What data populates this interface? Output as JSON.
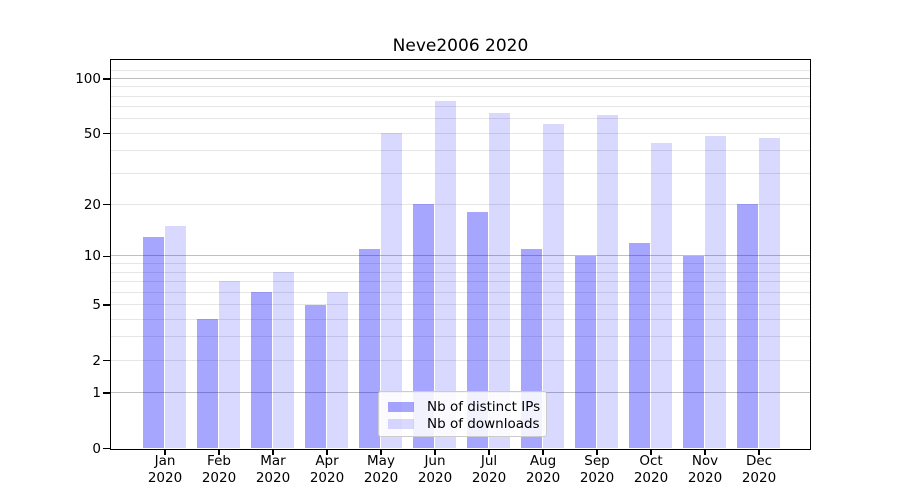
{
  "chart_data": {
    "type": "bar",
    "title": "Neve2006 2020",
    "categories": [
      "Jan 2020",
      "Feb 2020",
      "Mar 2020",
      "Apr 2020",
      "May 2020",
      "Jun 2020",
      "Jul 2020",
      "Aug 2020",
      "Sep 2020",
      "Oct 2020",
      "Nov 2020",
      "Dec 2020"
    ],
    "x_tick_labels": [
      [
        "Jan",
        "2020"
      ],
      [
        "Feb",
        "2020"
      ],
      [
        "Mar",
        "2020"
      ],
      [
        "Apr",
        "2020"
      ],
      [
        "May",
        "2020"
      ],
      [
        "Jun",
        "2020"
      ],
      [
        "Jul",
        "2020"
      ],
      [
        "Aug",
        "2020"
      ],
      [
        "Sep",
        "2020"
      ],
      [
        "Oct",
        "2020"
      ],
      [
        "Nov",
        "2020"
      ],
      [
        "Dec",
        "2020"
      ]
    ],
    "series": [
      {
        "name": "Nb of distinct IPs",
        "color_hex": "#0000ff",
        "alpha": 0.35,
        "appears_as": "#a6a6ff",
        "values": [
          13,
          4,
          6,
          5,
          11,
          20,
          18,
          11,
          10,
          12,
          10,
          20
        ]
      },
      {
        "name": "Nb of downloads",
        "color_hex": "#0000ff",
        "alpha": 0.15,
        "appears_as": "#d8d8ff",
        "values": [
          15,
          7,
          8,
          6,
          50,
          75,
          65,
          56,
          63,
          44,
          48,
          47
        ]
      }
    ],
    "yscale": "log(1+y)",
    "ylim": [
      0,
      126
    ],
    "y_ticks": [
      0,
      1,
      2,
      5,
      10,
      20,
      50,
      100
    ],
    "y_tick_labels": [
      "0",
      "1",
      "2",
      "5",
      "10",
      "20",
      "50",
      "100"
    ],
    "y_grid_major": [
      1,
      10,
      100
    ],
    "y_grid_minor": [
      2,
      3,
      4,
      5,
      6,
      7,
      8,
      9,
      20,
      30,
      40,
      50,
      60,
      70,
      80,
      90,
      110
    ],
    "grid": true,
    "legend_position": "lower center"
  }
}
